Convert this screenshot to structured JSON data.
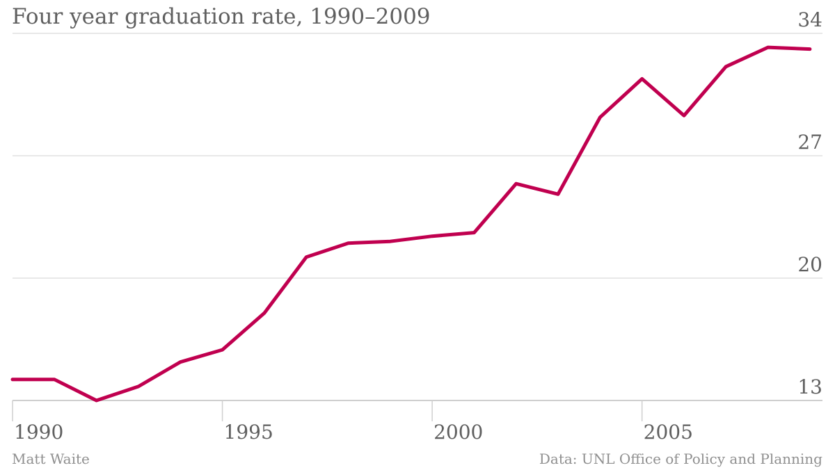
{
  "header": {
    "title": "Four year graduation rate, 1990–2009"
  },
  "footer": {
    "credit": "Matt Waite",
    "source": "Data: UNL Office of Policy and Planning"
  },
  "chart_data": {
    "type": "line",
    "title": "Four year graduation rate, 1990–2009",
    "xlabel": "",
    "ylabel": "",
    "x": [
      1990,
      1991,
      1992,
      1993,
      1994,
      1995,
      1996,
      1997,
      1998,
      1999,
      2000,
      2001,
      2002,
      2003,
      2004,
      2005,
      2006,
      2007,
      2008,
      2009
    ],
    "series": [
      {
        "color": "#c0004f",
        "values": [
          14.2,
          14.2,
          13.0,
          13.8,
          15.2,
          15.9,
          18.0,
          21.2,
          22.0,
          22.1,
          22.4,
          22.6,
          25.4,
          24.8,
          29.2,
          31.4,
          29.3,
          32.1,
          33.2,
          33.1
        ]
      }
    ],
    "xticks": [
      "1990",
      "1995",
      "2000",
      "2005"
    ],
    "yticks": [
      "13",
      "20",
      "27",
      "34"
    ],
    "ylim": [
      13,
      34
    ],
    "xlim": [
      1990,
      2009.3
    ],
    "grid": true,
    "y_axis_side": "right",
    "colors": {
      "line": "#c0004f",
      "grid": "#e0e0e0",
      "axis": "#cfcfcf",
      "text": "#5f5f5f"
    }
  }
}
